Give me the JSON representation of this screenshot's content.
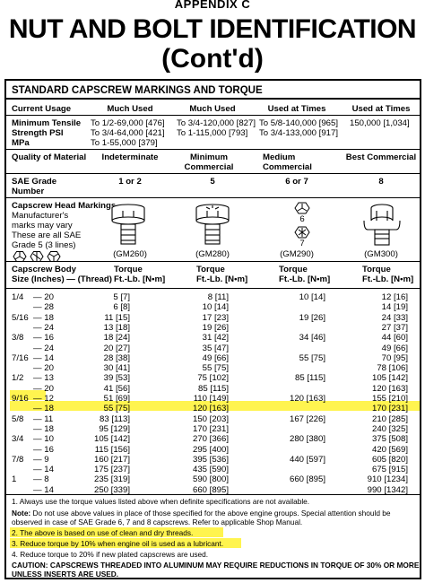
{
  "page": {
    "appendix": "APPENDIX C",
    "title_line1": "NUT AND BOLT IDENTIFICATION",
    "title_line2": "(Cont'd)",
    "section": "STANDARD CAPSCREW MARKINGS AND TORQUE"
  },
  "usage": {
    "label": "Current Usage",
    "cols": [
      "Much Used",
      "Much Used",
      "Used at Times",
      "Used at Times"
    ],
    "tensile_labels": [
      "Minimum Tensile",
      "Strength PSI",
      "MPa"
    ],
    "cells": [
      [
        "To 1/2-69,000 [476]",
        "To 3/4-64,000 [421]",
        "To 1-55,000 [379]"
      ],
      [
        "To 3/4-120,000 [827]",
        "To 1-115,000 [793]"
      ],
      [
        "To 5/8-140,000 [965]",
        "To 3/4-133,000 [917]"
      ],
      [
        "150,000 [1,034]"
      ]
    ]
  },
  "quality": {
    "label": "Quality of Material",
    "cols": [
      "Indeterminate",
      [
        "Minimum",
        "Commercial"
      ],
      [
        "Medium",
        "Commercial"
      ],
      "Best Commercial"
    ]
  },
  "grade": {
    "label": [
      "SAE Grade",
      "Number"
    ],
    "values": [
      "1 or 2",
      "5",
      "6 or 7",
      "8"
    ]
  },
  "markings": {
    "label": "Capscrew Head Markings",
    "notes": [
      "Manufacturer's",
      "marks may vary",
      "These are all SAE",
      "Grade 5 (3 lines)"
    ],
    "codes": [
      "(GM260)",
      "(GM280)",
      "(GM290)",
      "(GM300)"
    ],
    "grade_marks": [
      "6",
      "7"
    ]
  },
  "torque": {
    "size_label": [
      "Capscrew Body",
      "Size (Inches) — (Thread)"
    ],
    "col_labels": [
      [
        "Torque",
        "Ft.-Lb. [N•m]"
      ],
      [
        "Torque",
        "Ft.-Lb. [N•m]"
      ],
      [
        "Torque",
        "Ft.-Lb. [N•m]"
      ],
      [
        "Torque",
        "Ft.-Lb. [N•m]"
      ]
    ],
    "rows": [
      {
        "size": "1/4",
        "thread": "— 20",
        "v": [
          "5 [7]",
          "8 [11]",
          "10 [14]",
          "12 [16]"
        ]
      },
      {
        "size": "",
        "thread": "— 28",
        "v": [
          "6 [8]",
          "10 [14]",
          "",
          "14 [19]"
        ]
      },
      {
        "size": "5/16",
        "thread": "— 18",
        "v": [
          "11 [15]",
          "17 [23]",
          "19 [26]",
          "24 [33]"
        ]
      },
      {
        "size": "",
        "thread": "— 24",
        "v": [
          "13 [18]",
          "19 [26]",
          "",
          "27 [37]"
        ]
      },
      {
        "size": "3/8",
        "thread": "— 16",
        "v": [
          "18 [24]",
          "31 [42]",
          "34 [46]",
          "44 [60]"
        ]
      },
      {
        "size": "",
        "thread": "— 24",
        "v": [
          "20 [27]",
          "35 [47]",
          "",
          "49 [66]"
        ]
      },
      {
        "size": "7/16",
        "thread": "— 14",
        "v": [
          "28 [38]",
          "49 [66]",
          "55 [75]",
          "70 [95]"
        ]
      },
      {
        "size": "",
        "thread": "— 20",
        "v": [
          "30 [41]",
          "55 [75]",
          "",
          "78 [106]"
        ]
      },
      {
        "size": "1/2",
        "thread": "— 13",
        "v": [
          "39 [53]",
          "75 [102]",
          "85 [115]",
          "105 [142]"
        ]
      },
      {
        "size": "",
        "thread": "— 20",
        "v": [
          "41 [56]",
          "85 [115]",
          "",
          "120 [163]"
        ]
      },
      {
        "size": "9/16",
        "thread": "— 12",
        "v": [
          "51 [69]",
          "110 [149]",
          "120 [163]",
          "155 [210]"
        ]
      },
      {
        "size": "",
        "thread": "— 18",
        "v": [
          "55 [75]",
          "120 [163]",
          "",
          "170 [231]"
        ]
      },
      {
        "size": "5/8",
        "thread": "— 11",
        "v": [
          "83 [113]",
          "150 [203]",
          "167 [226]",
          "210 [285]"
        ]
      },
      {
        "size": "",
        "thread": "— 18",
        "v": [
          "95 [129]",
          "170 [231]",
          "",
          "240 [325]"
        ]
      },
      {
        "size": "3/4",
        "thread": "— 10",
        "v": [
          "105 [142]",
          "270 [366]",
          "280 [380]",
          "375 [508]"
        ]
      },
      {
        "size": "",
        "thread": "— 16",
        "v": [
          "115 [156]",
          "295 [400]",
          "",
          "420 [569]"
        ]
      },
      {
        "size": "7/8",
        "thread": "— 9",
        "v": [
          "160 [217]",
          "395 [536]",
          "440 [597]",
          "605 [820]"
        ]
      },
      {
        "size": "",
        "thread": "— 14",
        "v": [
          "175 [237]",
          "435 [590]",
          "",
          "675 [915]"
        ]
      },
      {
        "size": "1",
        "thread": "— 8",
        "v": [
          "235 [319]",
          "590 [800]",
          "660 [895]",
          "910 [1234]"
        ]
      },
      {
        "size": "",
        "thread": "— 14",
        "v": [
          "250 [339]",
          "660 [895]",
          "",
          "990 [1342]"
        ]
      }
    ]
  },
  "notes": {
    "n1": "1.  Always use the torque values listed above when definite specifications are not available.",
    "note_bold": "Note:",
    "note_lines": [
      " Do not use above values in place of those specified for the above engine groups. Special attention should be",
      "observed in case of SAE Grade 6, 7 and 8 capscrews. Refer to applicable Shop Manual."
    ],
    "n2": "2.  The above is based on use of clean and dry threads.",
    "n3": "3.  Reduce torque by 10% when engine oil is used as a lubricant.",
    "n4": "4.  Reduce torque to 20% if new plated capscrews are used.",
    "caution": [
      "CAUTION: CAPSCREWS THREADED INTO ALUMINUM MAY REQUIRE REDUCTIONS IN TORQUE OF 30% OR MORE,",
      "UNLESS INSERTS ARE USED."
    ]
  },
  "colors": {
    "highlight": "#fff44f",
    "ink": "#000000"
  }
}
